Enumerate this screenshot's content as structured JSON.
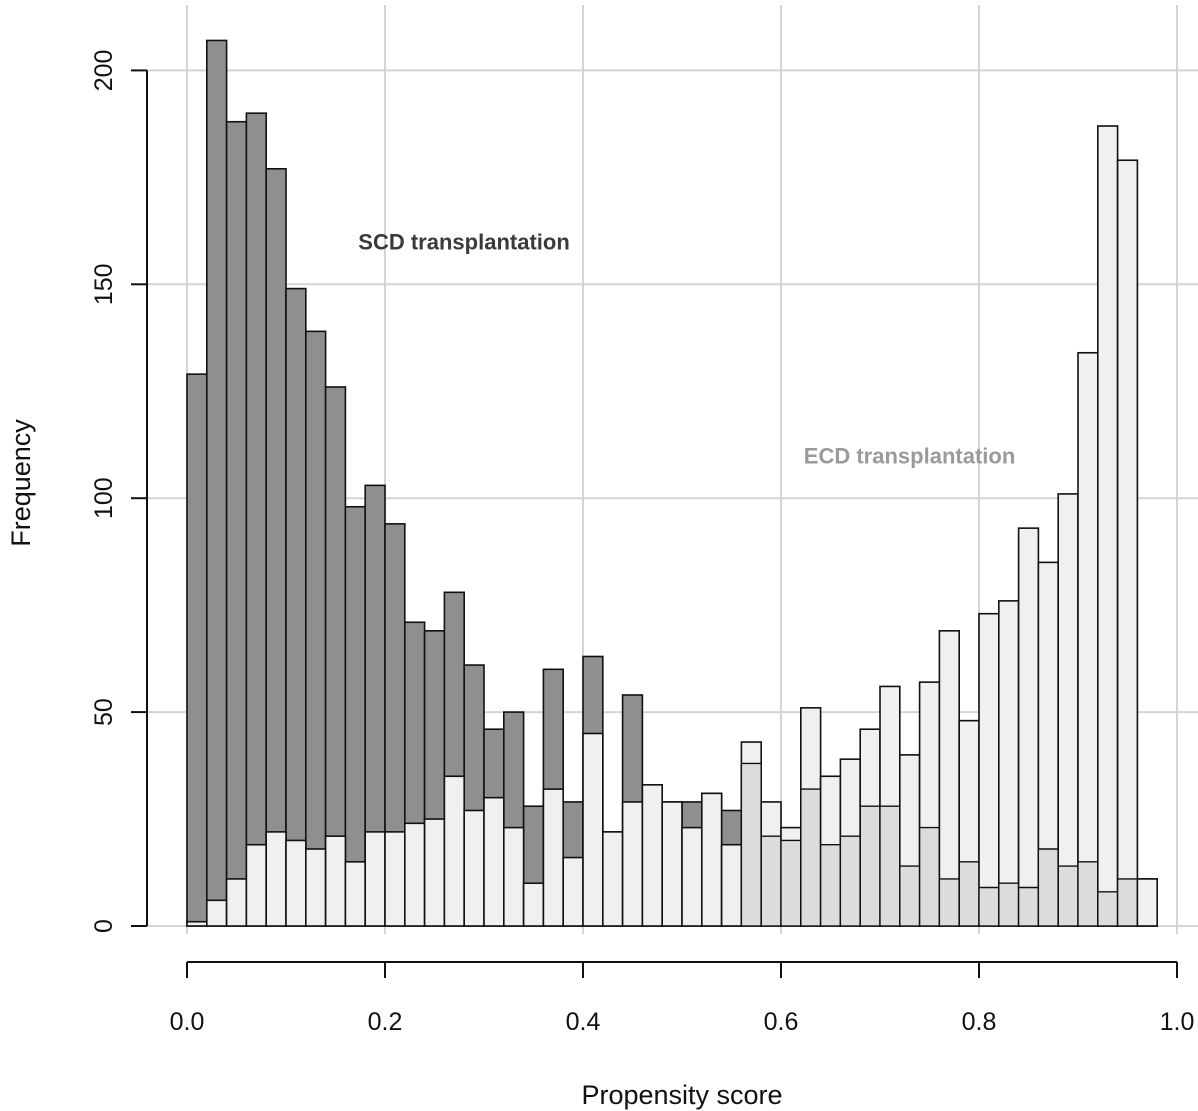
{
  "chart_data": {
    "type": "bar",
    "subtype": "overlaid-histogram",
    "title": "",
    "xlabel": "Propensity score",
    "ylabel": "Frequency",
    "xlim": [
      0.0,
      1.0
    ],
    "ylim": [
      0,
      210
    ],
    "x_ticks": [
      0.0,
      0.2,
      0.4,
      0.6,
      0.8,
      1.0
    ],
    "x_tick_labels": [
      "0.0",
      "0.2",
      "0.4",
      "0.6",
      "0.8",
      "1.0"
    ],
    "y_ticks": [
      0,
      50,
      100,
      150,
      200
    ],
    "y_tick_labels": [
      "0",
      "50",
      "100",
      "150",
      "200"
    ],
    "grid": true,
    "bin_width": 0.02,
    "bin_starts": [
      0.0,
      0.02,
      0.04,
      0.06,
      0.08,
      0.1,
      0.12,
      0.14,
      0.16,
      0.18,
      0.2,
      0.22,
      0.24,
      0.26,
      0.28,
      0.3,
      0.32,
      0.34,
      0.36,
      0.38,
      0.4,
      0.42,
      0.44,
      0.46,
      0.48,
      0.5,
      0.52,
      0.54,
      0.56,
      0.58,
      0.6,
      0.62,
      0.64,
      0.66,
      0.68,
      0.7,
      0.72,
      0.74,
      0.76,
      0.78,
      0.8,
      0.82,
      0.84,
      0.86,
      0.88,
      0.9,
      0.92,
      0.94,
      0.96
    ],
    "series": [
      {
        "name": "SCD transplantation",
        "color": "#8f8f8f",
        "values": [
          129,
          207,
          188,
          190,
          177,
          149,
          139,
          126,
          98,
          103,
          94,
          71,
          69,
          78,
          61,
          46,
          50,
          28,
          60,
          29,
          63,
          22,
          54,
          33,
          29,
          29,
          31,
          27,
          38,
          21,
          20,
          32,
          19,
          21,
          28,
          28,
          14,
          23,
          11,
          15,
          9,
          10,
          9,
          18,
          14,
          15,
          8,
          11,
          11
        ]
      },
      {
        "name": "ECD transplantation",
        "color": "#f0f0f0",
        "values": [
          1,
          6,
          11,
          19,
          22,
          20,
          18,
          21,
          15,
          22,
          22,
          24,
          25,
          35,
          27,
          30,
          23,
          10,
          32,
          16,
          45,
          22,
          29,
          33,
          29,
          23,
          31,
          19,
          43,
          29,
          23,
          51,
          35,
          39,
          46,
          56,
          40,
          57,
          69,
          48,
          73,
          76,
          93,
          85,
          101,
          134,
          187,
          179,
          11
        ]
      }
    ],
    "overlap_color": "#dcdcdc",
    "annotations": [
      {
        "text": "SCD transplantation",
        "x": 0.17,
        "y": 160,
        "color": "#3a3a3a"
      },
      {
        "text": "ECD transplantation",
        "x": 0.62,
        "y": 110,
        "color": "#9a9a9a"
      }
    ]
  }
}
